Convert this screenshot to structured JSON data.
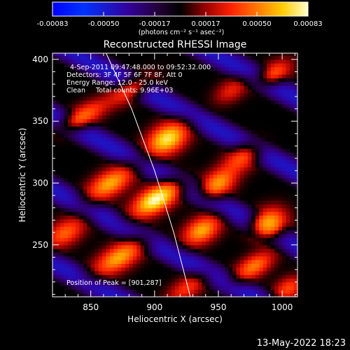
{
  "chart_data": {
    "type": "heatmap",
    "title": "Reconstructed RHESSI Image",
    "xlabel": "Heliocentric X (arcsec)",
    "ylabel": "Heliocentric Y (arcsec)",
    "xlim": [
      820,
      1012
    ],
    "ylim": [
      208,
      405
    ],
    "xticks": [
      850,
      900,
      950,
      1000
    ],
    "yticks": [
      250,
      300,
      350,
      400
    ],
    "colorbar": {
      "ticks": [
        "-0.00083",
        "-0.00050",
        "-0.00017",
        "0.00017",
        "0.00050",
        "0.00083"
      ],
      "range": [
        -0.00083,
        0.00083
      ],
      "unit_label": "(photons cm⁻² s⁻¹ asec⁻²)"
    },
    "annotations": [
      "4-Sep-2011 09:47:48.000 to 09:52:32.000",
      "Detectors: 3F 4F 5F 6F 7F 8F, Att 0",
      "Energy Range: 12.0 - 25.0 keV",
      "Clean     Total counts: 9.96E+03"
    ],
    "peak_label": "Position of Peak = [901,287]",
    "peak": {
      "x": 901,
      "y": 287,
      "value": 0.00083
    },
    "limb_curve": {
      "x": [
        862,
        882,
        900,
        915,
        928
      ],
      "y": [
        405,
        360,
        310,
        260,
        208
      ]
    },
    "blobs": [
      {
        "x": 901,
        "y": 287,
        "value": 0.00083,
        "sx": 14,
        "sy": 7
      },
      {
        "x": 910,
        "y": 336,
        "value": 0.00075,
        "sx": 12,
        "sy": 8
      },
      {
        "x": 865,
        "y": 300,
        "value": 0.0006,
        "sx": 14,
        "sy": 7
      },
      {
        "x": 950,
        "y": 300,
        "value": 0.00055,
        "sx": 10,
        "sy": 7
      },
      {
        "x": 937,
        "y": 262,
        "value": 0.0006,
        "sx": 11,
        "sy": 7
      },
      {
        "x": 872,
        "y": 240,
        "value": 0.0006,
        "sx": 15,
        "sy": 7
      },
      {
        "x": 990,
        "y": 268,
        "value": 0.0006,
        "sx": 10,
        "sy": 8
      },
      {
        "x": 968,
        "y": 320,
        "value": 0.0004,
        "sx": 11,
        "sy": 7
      },
      {
        "x": 978,
        "y": 233,
        "value": 0.0005,
        "sx": 12,
        "sy": 6
      },
      {
        "x": 830,
        "y": 260,
        "value": 0.00045,
        "sx": 12,
        "sy": 7
      },
      {
        "x": 845,
        "y": 355,
        "value": 0.00045,
        "sx": 13,
        "sy": 6
      },
      {
        "x": 880,
        "y": 375,
        "value": 0.00035,
        "sx": 14,
        "sy": 6
      },
      {
        "x": 995,
        "y": 390,
        "value": 0.0004,
        "sx": 10,
        "sy": 6
      },
      {
        "x": 960,
        "y": 375,
        "value": 0.0003,
        "sx": 10,
        "sy": 6
      },
      {
        "x": 1005,
        "y": 215,
        "value": 0.0004,
        "sx": 9,
        "sy": 6
      },
      {
        "x": 925,
        "y": 215,
        "value": 0.00035,
        "sx": 12,
        "sy": 6
      }
    ]
  },
  "footer": {
    "date": "13-May-2022 18:23"
  }
}
